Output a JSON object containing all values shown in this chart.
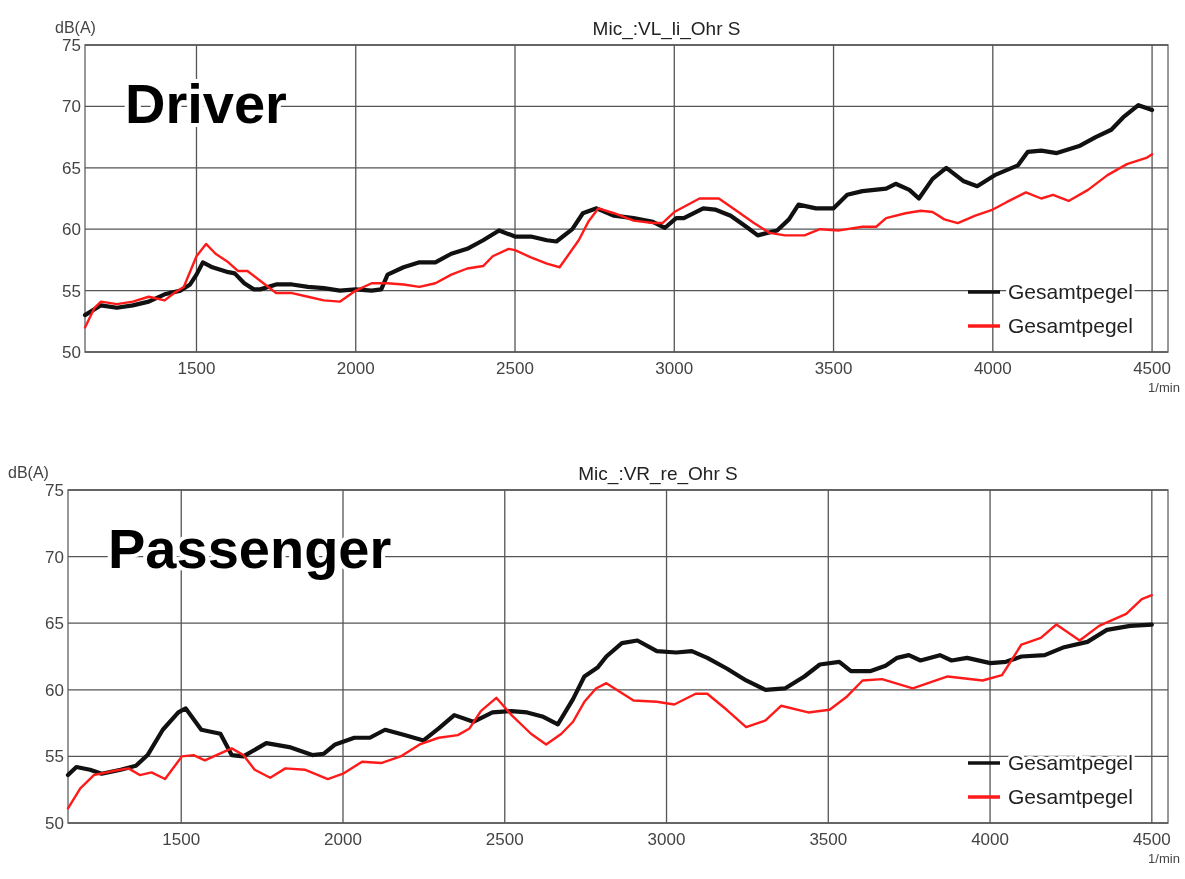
{
  "chart_data": [
    {
      "type": "line",
      "title": "Mic_:VL_li_Ohr S",
      "ylabel": "dB(A)",
      "xlabel": "1/min",
      "annotations": [
        "Driver"
      ],
      "xlim": [
        1150,
        4550
      ],
      "ylim": [
        50,
        75
      ],
      "xticks": [
        1500,
        2000,
        2500,
        3000,
        3500,
        4000,
        4500
      ],
      "yticks": [
        50,
        55,
        60,
        65,
        70,
        75
      ],
      "grid": true,
      "legend": "bottom right",
      "series": [
        {
          "name": "Gesamtpegel",
          "color": "#111111",
          "x": [
            1150,
            1200,
            1250,
            1300,
            1350,
            1400,
            1450,
            1480,
            1500,
            1520,
            1550,
            1600,
            1620,
            1650,
            1680,
            1700,
            1750,
            1800,
            1850,
            1900,
            1950,
            2000,
            2050,
            2080,
            2100,
            2150,
            2200,
            2250,
            2300,
            2350,
            2400,
            2450,
            2500,
            2550,
            2600,
            2630,
            2680,
            2713,
            2756,
            2811,
            2872,
            2933,
            2970,
            3006,
            3030,
            3091,
            3128,
            3177,
            3226,
            3262,
            3323,
            3360,
            3390,
            3445,
            3500,
            3543,
            3591,
            3665,
            3695,
            3738,
            3768,
            3811,
            3854,
            3909,
            3951,
            4006,
            4079,
            4110,
            4152,
            4201,
            4274,
            4323,
            4372,
            4409,
            4457,
            4500
          ],
          "values": [
            53.0,
            53.8,
            53.6,
            53.8,
            54.1,
            54.7,
            55.0,
            55.5,
            56.3,
            57.3,
            56.9,
            56.5,
            56.4,
            55.6,
            55.1,
            55.1,
            55.5,
            55.5,
            55.3,
            55.2,
            55.0,
            55.1,
            55.0,
            55.1,
            56.3,
            56.9,
            57.3,
            57.3,
            58.0,
            58.4,
            59.1,
            59.9,
            59.4,
            59.4,
            59.1,
            59.0,
            60.0,
            61.3,
            61.7,
            61.1,
            60.9,
            60.6,
            60.1,
            60.9,
            60.9,
            61.7,
            61.6,
            61.1,
            60.2,
            59.5,
            59.9,
            60.8,
            62.0,
            61.7,
            61.7,
            62.8,
            63.1,
            63.3,
            63.7,
            63.2,
            62.5,
            64.1,
            65.0,
            63.9,
            63.5,
            64.4,
            65.2,
            66.3,
            66.4,
            66.2,
            66.8,
            67.5,
            68.1,
            69.1,
            70.1,
            69.7
          ]
        },
        {
          "name": "Gesamtpegel",
          "color": "#ff1a1a",
          "x": [
            1150,
            1180,
            1200,
            1250,
            1300,
            1350,
            1400,
            1430,
            1460,
            1500,
            1530,
            1560,
            1600,
            1630,
            1660,
            1700,
            1750,
            1800,
            1850,
            1900,
            1950,
            2000,
            2050,
            2100,
            2150,
            2200,
            2250,
            2300,
            2350,
            2400,
            2430,
            2480,
            2500,
            2550,
            2600,
            2640,
            2700,
            2730,
            2762,
            2811,
            2872,
            2933,
            2963,
            3000,
            3079,
            3140,
            3201,
            3250,
            3299,
            3348,
            3409,
            3457,
            3518,
            3591,
            3634,
            3665,
            3726,
            3774,
            3811,
            3848,
            3890,
            3945,
            4000,
            4043,
            4104,
            4152,
            4189,
            4238,
            4299,
            4360,
            4421,
            4482,
            4500
          ],
          "values": [
            52.0,
            53.6,
            54.1,
            53.9,
            54.1,
            54.5,
            54.2,
            54.8,
            55.3,
            57.8,
            58.8,
            58.0,
            57.3,
            56.6,
            56.6,
            55.8,
            54.8,
            54.8,
            54.5,
            54.2,
            54.1,
            55.0,
            55.6,
            55.6,
            55.5,
            55.3,
            55.6,
            56.3,
            56.8,
            57.0,
            57.8,
            58.4,
            58.3,
            57.7,
            57.2,
            56.9,
            59.1,
            60.6,
            61.7,
            61.3,
            60.7,
            60.5,
            60.5,
            61.4,
            62.5,
            62.5,
            61.4,
            60.5,
            59.7,
            59.5,
            59.5,
            60.0,
            59.9,
            60.2,
            60.2,
            60.9,
            61.3,
            61.5,
            61.4,
            60.8,
            60.5,
            61.1,
            61.6,
            62.2,
            63.0,
            62.5,
            62.8,
            62.3,
            63.2,
            64.4,
            65.3,
            65.8,
            66.1
          ]
        }
      ]
    },
    {
      "type": "line",
      "title": "Mic_:VR_re_Ohr S",
      "ylabel": "dB(A)",
      "xlabel": "1/min",
      "annotations": [
        "Passenger"
      ],
      "xlim": [
        1150,
        4550
      ],
      "ylim": [
        50,
        75
      ],
      "xticks": [
        1500,
        2000,
        2500,
        3000,
        3500,
        4000,
        4500
      ],
      "yticks": [
        50,
        55,
        60,
        65,
        70,
        75
      ],
      "grid": true,
      "legend": "bottom right",
      "series": [
        {
          "name": "Gesamtpegel",
          "color": "#111111",
          "x": [
            1150,
            1176,
            1218,
            1254,
            1313,
            1360,
            1396,
            1443,
            1491,
            1514,
            1562,
            1621,
            1656,
            1692,
            1763,
            1834,
            1905,
            1941,
            1976,
            2035,
            2083,
            2130,
            2190,
            2249,
            2296,
            2344,
            2403,
            2462,
            2521,
            2569,
            2616,
            2664,
            2711,
            2746,
            2788,
            2814,
            2862,
            2910,
            2970,
            3030,
            3078,
            3126,
            3186,
            3246,
            3306,
            3366,
            3426,
            3474,
            3534,
            3570,
            3629,
            3677,
            3713,
            3749,
            3785,
            3845,
            3881,
            3929,
            4001,
            4049,
            4097,
            4169,
            4229,
            4301,
            4361,
            4433,
            4500
          ],
          "values": [
            53.6,
            54.2,
            54.0,
            53.7,
            54.0,
            54.3,
            55.1,
            57.0,
            58.3,
            58.6,
            57.0,
            56.7,
            55.1,
            55.0,
            56.0,
            55.7,
            55.1,
            55.2,
            55.9,
            56.4,
            56.4,
            57.0,
            56.6,
            56.2,
            57.1,
            58.1,
            57.6,
            58.3,
            58.4,
            58.3,
            58.0,
            57.4,
            59.3,
            61.0,
            61.7,
            62.5,
            63.5,
            63.7,
            62.9,
            62.8,
            62.9,
            62.4,
            61.6,
            60.7,
            60.0,
            60.1,
            61.0,
            61.9,
            62.1,
            61.4,
            61.4,
            61.8,
            62.4,
            62.6,
            62.2,
            62.6,
            62.2,
            62.4,
            62.0,
            62.1,
            62.5,
            62.6,
            63.2,
            63.6,
            64.5,
            64.8,
            64.9
          ]
        },
        {
          "name": "Gesamtpegel",
          "color": "#ff1a1a",
          "x": [
            1150,
            1188,
            1230,
            1289,
            1337,
            1372,
            1408,
            1450,
            1502,
            1538,
            1573,
            1609,
            1656,
            1692,
            1727,
            1775,
            1822,
            1882,
            1953,
            2000,
            2059,
            2118,
            2178,
            2237,
            2296,
            2355,
            2391,
            2426,
            2474,
            2521,
            2581,
            2628,
            2675,
            2711,
            2746,
            2782,
            2814,
            2898,
            2970,
            3024,
            3090,
            3126,
            3186,
            3246,
            3306,
            3354,
            3438,
            3504,
            3558,
            3606,
            3666,
            3761,
            3869,
            3977,
            4037,
            4097,
            4157,
            4205,
            4277,
            4337,
            4421,
            4469,
            4500
          ],
          "values": [
            51.1,
            52.6,
            53.6,
            53.9,
            54.1,
            53.6,
            53.8,
            53.3,
            55.0,
            55.1,
            54.7,
            55.1,
            55.6,
            55.1,
            54.0,
            53.4,
            54.1,
            54.0,
            53.3,
            53.7,
            54.6,
            54.5,
            55.0,
            55.9,
            56.4,
            56.6,
            57.1,
            58.4,
            59.4,
            58.1,
            56.7,
            55.9,
            56.7,
            57.6,
            59.1,
            60.1,
            60.5,
            59.2,
            59.1,
            58.9,
            59.7,
            59.7,
            58.5,
            57.2,
            57.7,
            58.8,
            58.3,
            58.5,
            59.5,
            60.7,
            60.8,
            60.1,
            61.0,
            60.7,
            61.1,
            63.4,
            63.9,
            64.9,
            63.7,
            64.8,
            65.7,
            66.8,
            67.1
          ]
        }
      ]
    }
  ]
}
